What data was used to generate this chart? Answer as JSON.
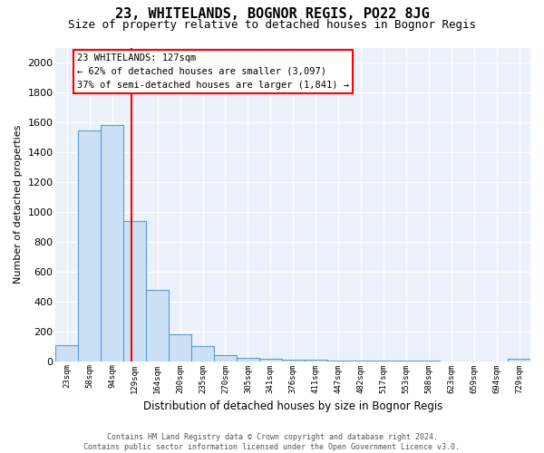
{
  "title": "23, WHITELANDS, BOGNOR REGIS, PO22 8JG",
  "subtitle": "Size of property relative to detached houses in Bognor Regis",
  "xlabel": "Distribution of detached houses by size in Bognor Regis",
  "ylabel": "Number of detached properties",
  "bar_color": "#cce0f5",
  "bar_edge_color": "#5b9bd5",
  "bg_color": "#eaf1fa",
  "grid_color": "#ffffff",
  "categories": [
    "23sqm",
    "58sqm",
    "94sqm",
    "129sqm",
    "164sqm",
    "200sqm",
    "235sqm",
    "270sqm",
    "305sqm",
    "341sqm",
    "376sqm",
    "411sqm",
    "447sqm",
    "482sqm",
    "517sqm",
    "553sqm",
    "588sqm",
    "623sqm",
    "659sqm",
    "694sqm",
    "729sqm"
  ],
  "values": [
    110,
    1545,
    1580,
    940,
    480,
    180,
    100,
    38,
    25,
    18,
    10,
    8,
    5,
    3,
    2,
    2,
    1,
    0,
    0,
    0,
    15
  ],
  "ylim": [
    0,
    2100
  ],
  "yticks": [
    0,
    200,
    400,
    600,
    800,
    1000,
    1200,
    1400,
    1600,
    1800,
    2000
  ],
  "red_line_x": 2.85,
  "annotation_text": "23 WHITELANDS: 127sqm\n← 62% of detached houses are smaller (3,097)\n37% of semi-detached houses are larger (1,841) →",
  "footnote": "Contains HM Land Registry data © Crown copyright and database right 2024.\nContains public sector information licensed under the Open Government Licence v3.0.",
  "title_fontsize": 11,
  "subtitle_fontsize": 9,
  "annotation_fontsize": 7.5,
  "ylabel_fontsize": 8,
  "xlabel_fontsize": 8.5,
  "ytick_fontsize": 8,
  "xtick_fontsize": 6.5,
  "footnote_fontsize": 6
}
